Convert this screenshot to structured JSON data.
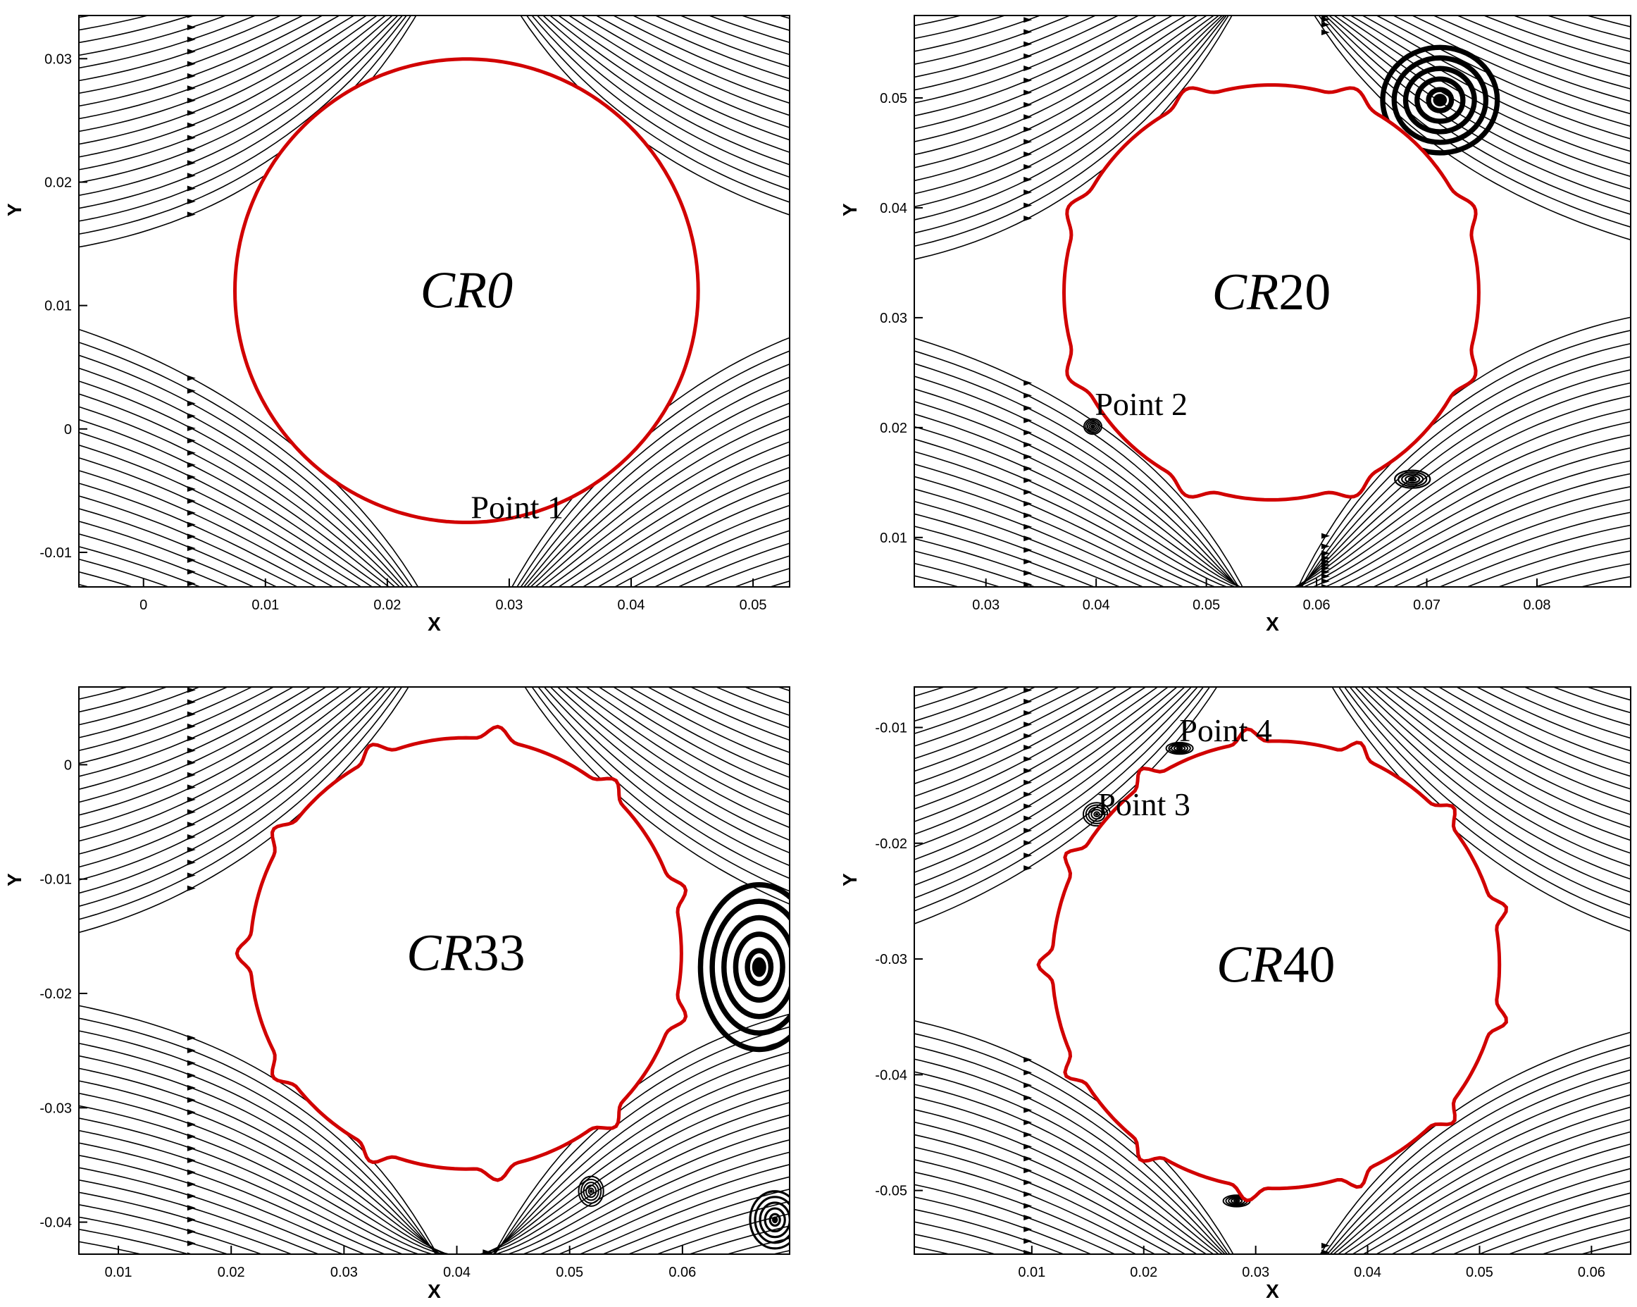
{
  "colors": {
    "body_outline": "#d10000",
    "streamlines": "#000000",
    "background": "#ffffff"
  },
  "panels": [
    {
      "case": "CR0",
      "case_italic_part": "CR0",
      "case_plain_part": "",
      "xlabel": "X",
      "ylabel": "Y",
      "xticks": [
        "0",
        "0.01",
        "0.02",
        "0.03",
        "0.04",
        "0.05"
      ],
      "xtick_values": [
        0,
        0.01,
        0.02,
        0.03,
        0.04,
        0.05
      ],
      "xlim": [
        -0.0053,
        0.053
      ],
      "yticks": [
        "0.03",
        "0.02",
        "0.01",
        "0",
        "-0.01"
      ],
      "ytick_values": [
        0.03,
        0.02,
        0.01,
        0,
        -0.01
      ],
      "ylim": [
        -0.0128,
        0.0335
      ],
      "body_center": [
        0.0265,
        0.0112
      ],
      "body_radius": 0.019,
      "bumps": 0,
      "points": [
        {
          "label": "Point 1",
          "x": 0.0265,
          "y": -0.0078
        }
      ],
      "vortices": []
    },
    {
      "case": "CR20",
      "case_italic_part": "CR",
      "case_plain_part": "20",
      "xlabel": "X",
      "ylabel": "Y",
      "xticks": [
        "0.03",
        "0.04",
        "0.05",
        "0.06",
        "0.07",
        "0.08"
      ],
      "xtick_values": [
        0.03,
        0.04,
        0.05,
        0.06,
        0.07,
        0.08
      ],
      "xlim": [
        0.0235,
        0.0885
      ],
      "yticks": [
        "0.05",
        "0.04",
        "0.03",
        "0.02",
        "0.01"
      ],
      "ytick_values": [
        0.05,
        0.04,
        0.03,
        0.02,
        0.01
      ],
      "ylim": [
        0.0055,
        0.0575
      ],
      "body_center": [
        0.0559,
        0.0323
      ],
      "body_radius": 0.0195,
      "bumps": 8,
      "points": [
        {
          "label": "Point 2",
          "x": 0.0395,
          "y": 0.0205
        }
      ],
      "vortices": [
        {
          "x": 0.0712,
          "y": 0.0498,
          "rx": 0.0052,
          "ry": 0.0048
        },
        {
          "x": 0.0687,
          "y": 0.0153,
          "rx": 0.0016,
          "ry": 0.0008
        },
        {
          "x": 0.0397,
          "y": 0.0201,
          "rx": 0.0008,
          "ry": 0.0007
        }
      ]
    },
    {
      "case": "CR33",
      "case_italic_part": "CR",
      "case_plain_part": "33",
      "xlabel": "X",
      "ylabel": "Y",
      "xticks": [
        "0.01",
        "0.02",
        "0.03",
        "0.04",
        "0.05",
        "0.06"
      ],
      "xtick_values": [
        0.01,
        0.02,
        0.03,
        0.04,
        0.05,
        0.06
      ],
      "xlim": [
        0.0065,
        0.0695
      ],
      "yticks": [
        "0",
        "-0.01",
        "-0.02",
        "-0.03",
        "-0.04"
      ],
      "ytick_values": [
        0,
        -0.01,
        -0.02,
        -0.03,
        -0.04
      ],
      "ylim": [
        -0.0428,
        0.0068
      ],
      "body_center": [
        0.0408,
        -0.0165
      ],
      "body_radius": 0.0198,
      "bumps": 11,
      "points": [],
      "vortices": [
        {
          "x": 0.0668,
          "y": -0.0177,
          "rx": 0.0052,
          "ry": 0.0072
        },
        {
          "x": 0.0519,
          "y": -0.0373,
          "rx": 0.0011,
          "ry": 0.0013
        },
        {
          "x": 0.0682,
          "y": -0.0398,
          "rx": 0.0022,
          "ry": 0.0025
        }
      ]
    },
    {
      "case": "CR40",
      "case_italic_part": "CR",
      "case_plain_part": "40",
      "xlabel": "X",
      "ylabel": "Y",
      "xticks": [
        "0.01",
        "0.02",
        "0.03",
        "0.04",
        "0.05",
        "0.06"
      ],
      "xtick_values": [
        0.01,
        0.02,
        0.03,
        0.04,
        0.05,
        0.06
      ],
      "xlim": [
        -0.0005,
        0.0635
      ],
      "yticks": [
        "-0.01",
        "-0.02",
        "-0.03",
        "-0.04",
        "-0.05"
      ],
      "ytick_values": [
        -0.01,
        -0.02,
        -0.03,
        -0.04,
        -0.05
      ],
      "ylim": [
        -0.0555,
        -0.0065
      ],
      "body_center": [
        0.0318,
        -0.0305
      ],
      "body_radius": 0.0207,
      "bumps": 13,
      "points": [
        {
          "label": "Point 4",
          "x": 0.0228,
          "y": -0.0118
        },
        {
          "label": "Point 3",
          "x": 0.0155,
          "y": -0.0182
        }
      ],
      "vortices": [
        {
          "x": 0.0232,
          "y": -0.0118,
          "rx": 0.0012,
          "ry": 0.0005
        },
        {
          "x": 0.0158,
          "y": -0.0175,
          "rx": 0.0012,
          "ry": 0.001
        },
        {
          "x": 0.0283,
          "y": -0.0509,
          "rx": 0.0012,
          "ry": 0.0005
        }
      ]
    }
  ]
}
